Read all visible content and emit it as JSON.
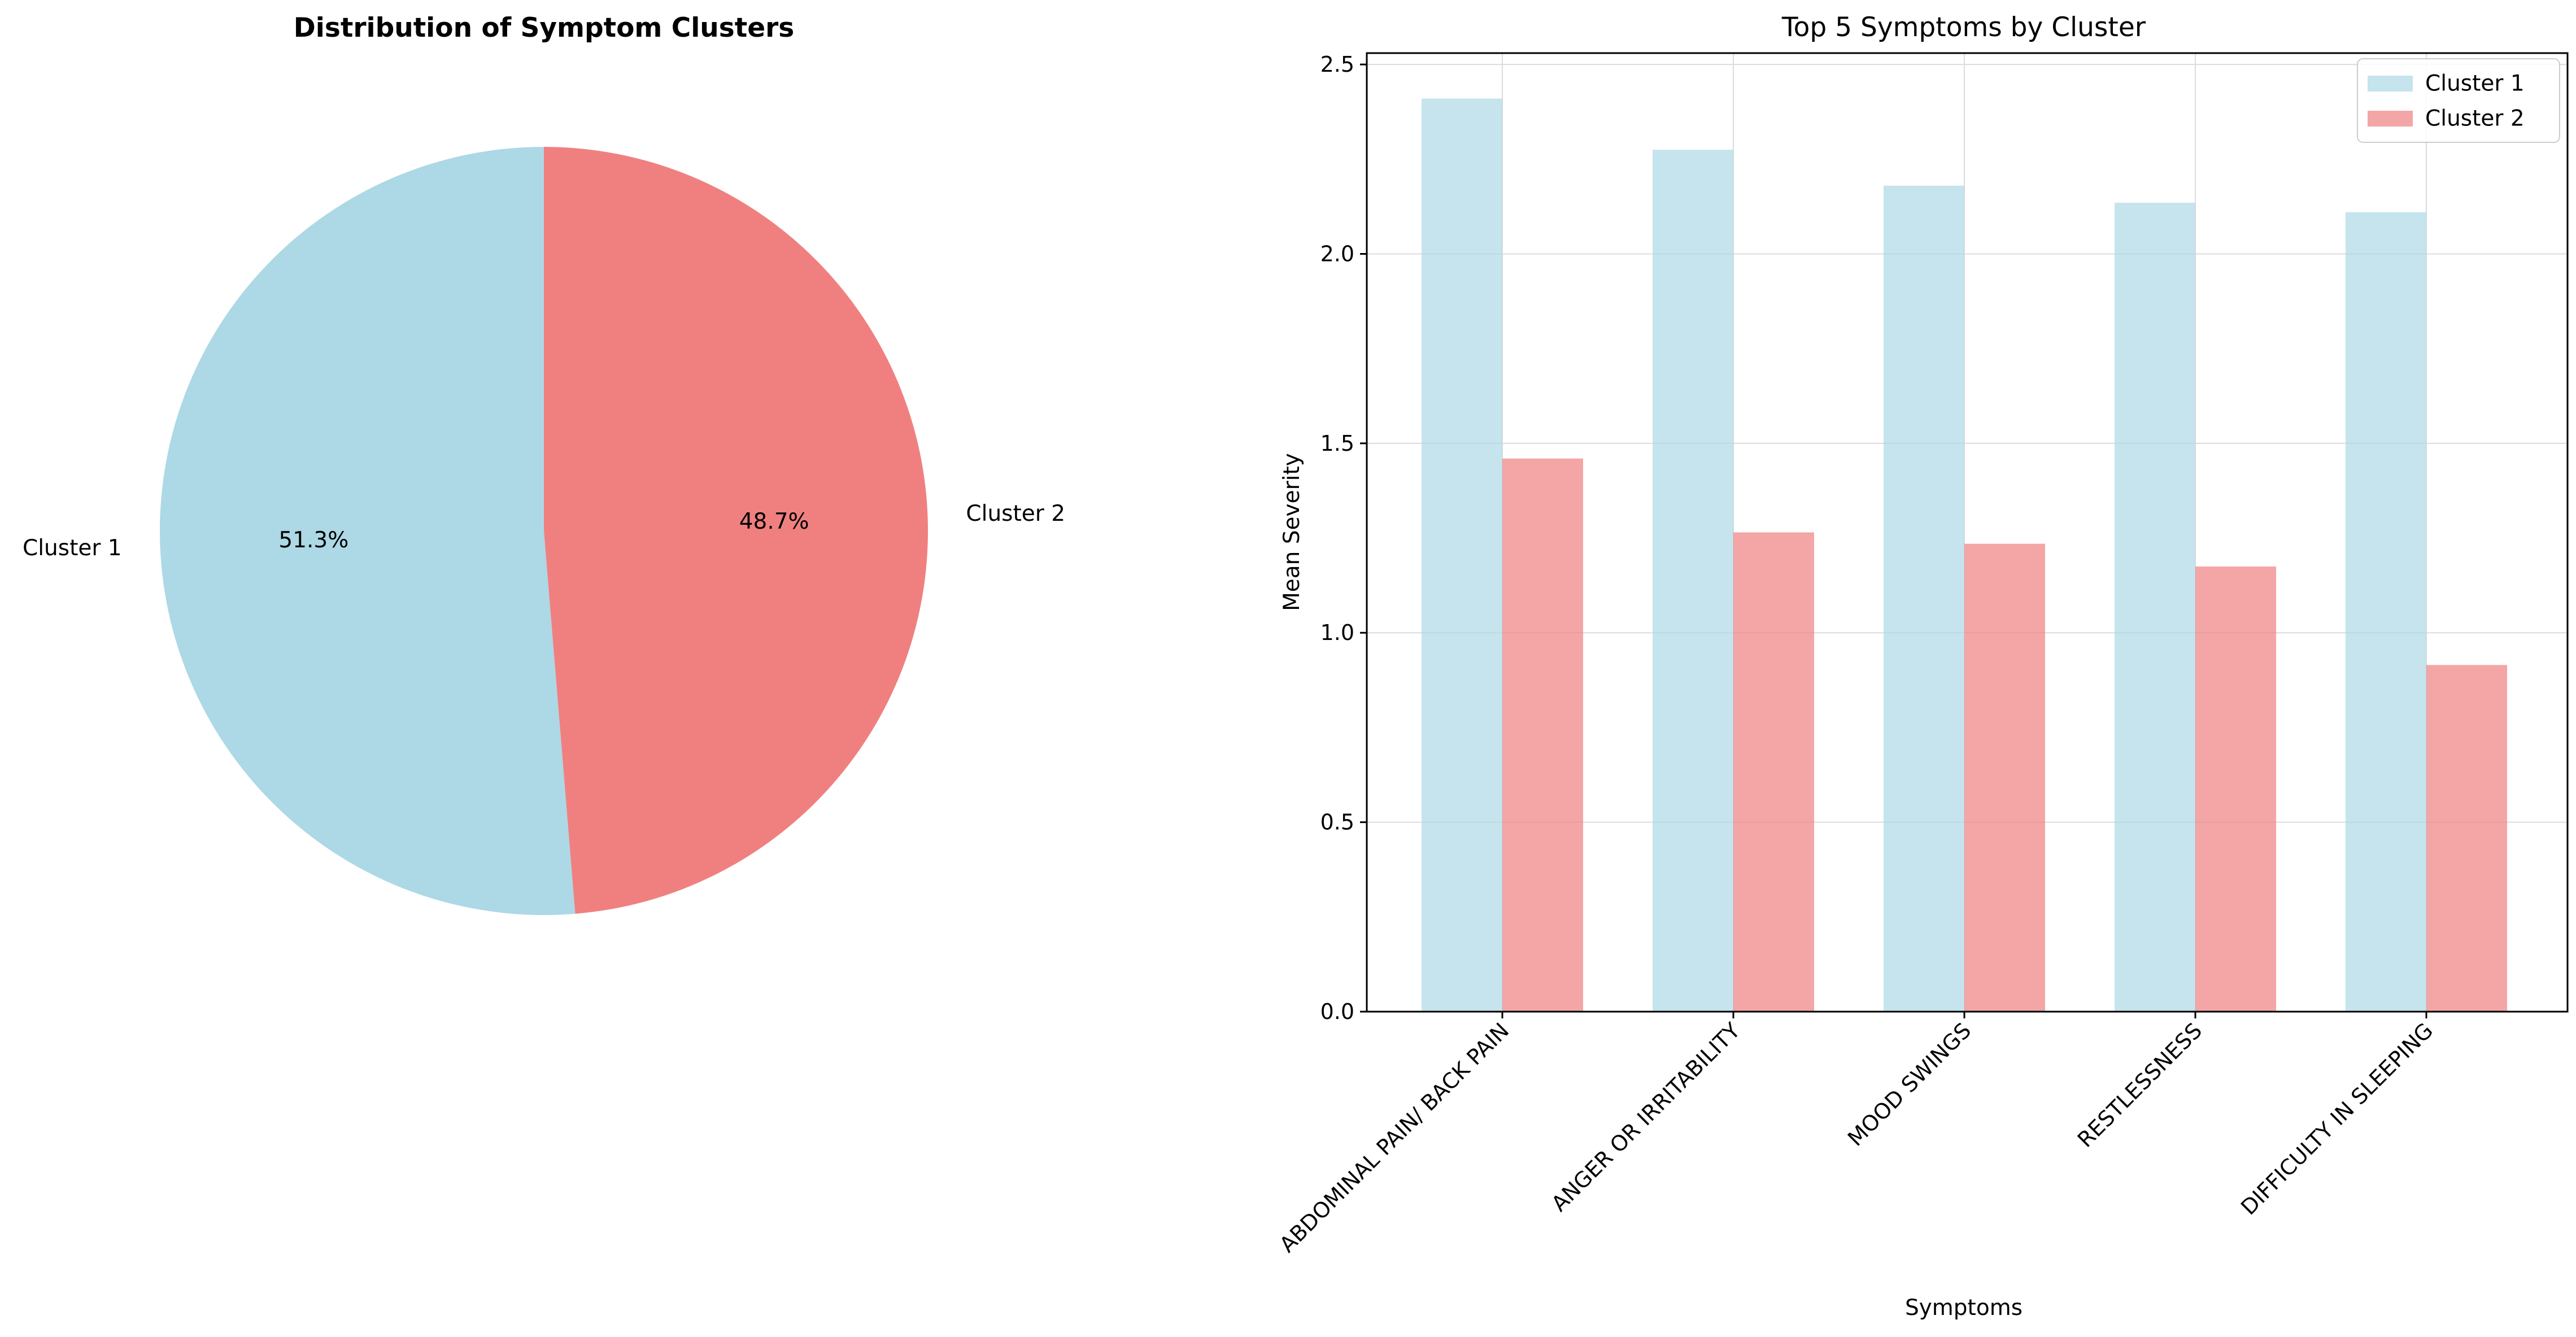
{
  "chart_data": [
    {
      "type": "pie",
      "title": "Distribution of Symptom Clusters",
      "labels": [
        "Cluster 1",
        "Cluster 2"
      ],
      "values": [
        51.3,
        48.7
      ],
      "value_labels": [
        "51.3%",
        "48.7%"
      ],
      "colors": [
        "#add8e6",
        "#f08080"
      ],
      "start_angle_deg": 90,
      "direction": "counterclockwise"
    },
    {
      "type": "bar",
      "title": "Top 5 Symptoms by Cluster",
      "xlabel": "Symptoms",
      "ylabel": "Mean Severity",
      "categories": [
        "ABDOMINAL PAIN/ BACK PAIN",
        "ANGER OR IRRITABILITY",
        "MOOD SWINGS",
        "RESTLESSNESS",
        "DIFFICULTY IN SLEEPING"
      ],
      "series": [
        {
          "name": "Cluster 1",
          "values": [
            2.41,
            2.275,
            2.18,
            2.135,
            2.11
          ],
          "color": "#add8e6"
        },
        {
          "name": "Cluster 2",
          "values": [
            1.46,
            1.265,
            1.235,
            1.175,
            0.915
          ],
          "color": "#f08080"
        }
      ],
      "ylim": [
        0,
        2.53
      ],
      "yticks": [
        0.0,
        0.5,
        1.0,
        1.5,
        2.0,
        2.5
      ],
      "ytick_labels": [
        "0.0",
        "0.5",
        "1.0",
        "1.5",
        "2.0",
        "2.5"
      ],
      "grid": true,
      "legend_position": "top-right",
      "bar_opacity": 0.7
    }
  ]
}
